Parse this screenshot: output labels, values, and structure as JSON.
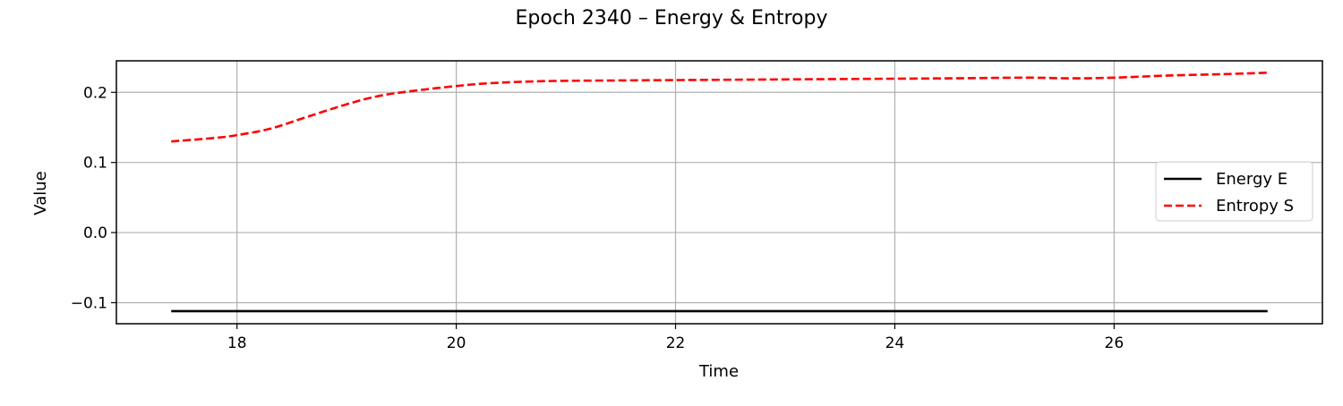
{
  "chart_data": {
    "type": "line",
    "title": "Epoch 2340 – Energy & Entropy",
    "xlabel": "Time",
    "ylabel": "Value",
    "xlim": [
      16.9,
      27.9
    ],
    "ylim": [
      -0.13,
      0.245
    ],
    "xticks": [
      18,
      20,
      22,
      24,
      26
    ],
    "xtick_labels": [
      "18",
      "20",
      "22",
      "24",
      "26"
    ],
    "yticks": [
      -0.1,
      0.0,
      0.1,
      0.2
    ],
    "ytick_labels": [
      "−0.1",
      "0.0",
      "0.1",
      "0.2"
    ],
    "grid": true,
    "legend_position": "center-right",
    "series": [
      {
        "name": "Energy E",
        "color": "#000000",
        "style": "solid",
        "x": [
          17.4,
          27.4
        ],
        "y": [
          -0.112,
          -0.112
        ]
      },
      {
        "name": "Entropy S",
        "color": "#ff0000",
        "style": "dashed",
        "x": [
          17.4,
          17.8,
          18.0,
          18.3,
          18.6,
          19.0,
          19.3,
          19.6,
          20.0,
          20.3,
          20.8,
          21.5,
          22.5,
          23.5,
          24.5,
          25.2,
          25.6,
          26.0,
          26.5,
          27.0,
          27.4
        ],
        "y": [
          0.13,
          0.135,
          0.139,
          0.148,
          0.163,
          0.183,
          0.195,
          0.202,
          0.209,
          0.213,
          0.216,
          0.217,
          0.218,
          0.219,
          0.22,
          0.221,
          0.22,
          0.221,
          0.224,
          0.226,
          0.228
        ]
      }
    ]
  }
}
